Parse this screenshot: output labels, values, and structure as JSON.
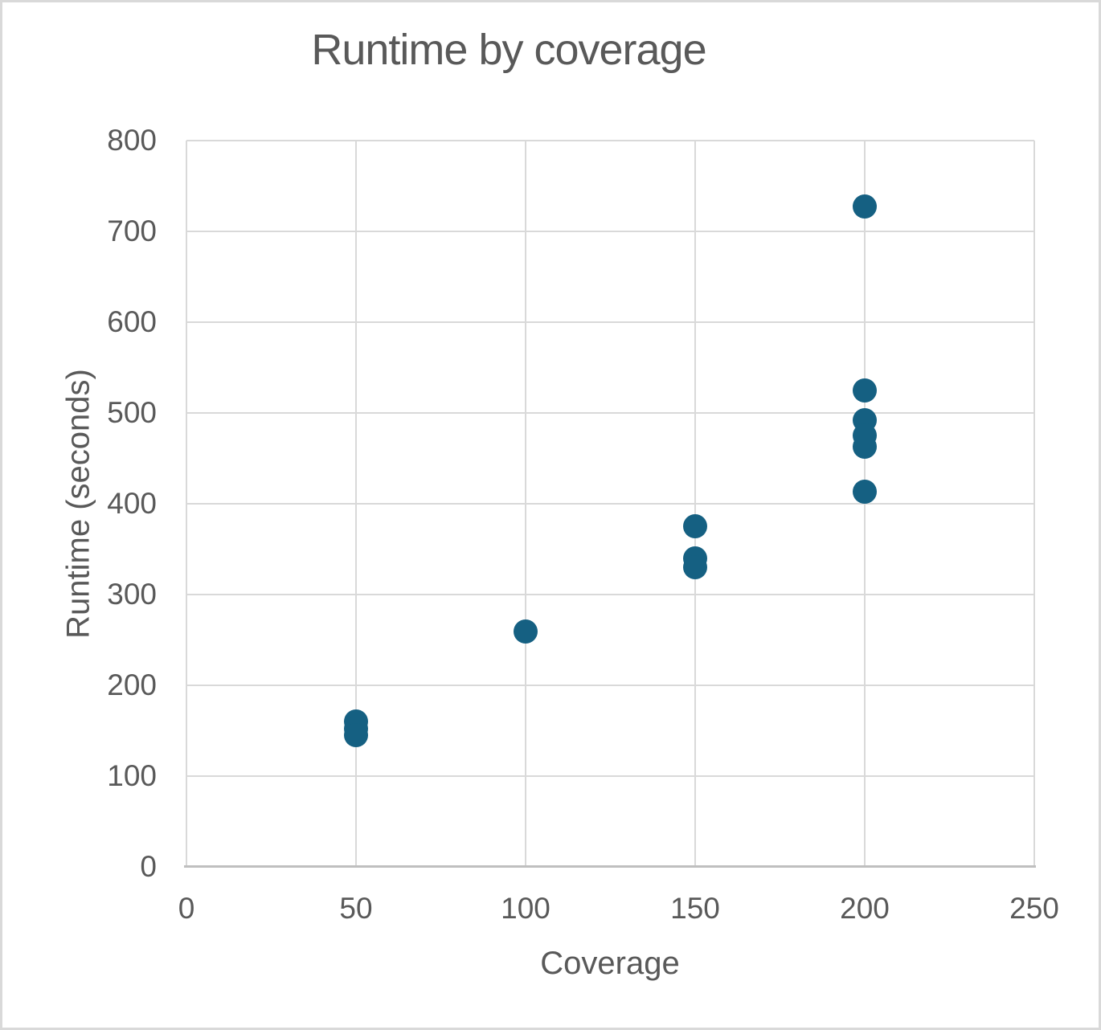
{
  "chart_data": {
    "type": "scatter",
    "title": "Runtime by coverage",
    "xlabel": "Coverage",
    "ylabel": "Runtime (seconds)",
    "xlim": [
      0,
      250
    ],
    "ylim": [
      0,
      800
    ],
    "xticks": [
      0,
      50,
      100,
      150,
      200,
      250
    ],
    "yticks": [
      0,
      100,
      200,
      300,
      400,
      500,
      600,
      700,
      800
    ],
    "grid": true,
    "legend_position": "none",
    "series": [
      {
        "name": "Runtime",
        "points": [
          {
            "x": 50,
            "y": 160
          },
          {
            "x": 50,
            "y": 152
          },
          {
            "x": 50,
            "y": 145
          },
          {
            "x": 100,
            "y": 259
          },
          {
            "x": 150,
            "y": 375
          },
          {
            "x": 150,
            "y": 340
          },
          {
            "x": 150,
            "y": 330
          },
          {
            "x": 200,
            "y": 727
          },
          {
            "x": 200,
            "y": 525
          },
          {
            "x": 200,
            "y": 492
          },
          {
            "x": 200,
            "y": 475
          },
          {
            "x": 200,
            "y": 463
          },
          {
            "x": 200,
            "y": 413
          }
        ]
      }
    ],
    "colors": {
      "marker": "#156082",
      "text": "#595959",
      "gridline": "#d9d9d9",
      "axis_line": "#bfbfbf",
      "background": "#ffffff",
      "border": "#d9d9d9"
    }
  }
}
